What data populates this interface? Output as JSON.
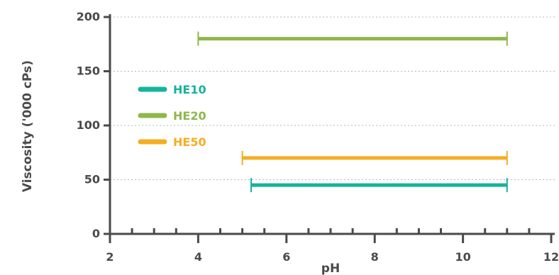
{
  "chart_data": {
    "type": "range",
    "xlabel": "pH",
    "ylabel": "Viscosity ('000 cPs)",
    "xlim": [
      2,
      12
    ],
    "ylim": [
      0,
      200
    ],
    "xticks": [
      "2",
      "4",
      "6",
      "8",
      "10",
      "12"
    ],
    "yticks": [
      "0",
      "50",
      "100",
      "150",
      "200"
    ],
    "grid": "horizontal-dotted",
    "legend_position": "left",
    "series": [
      {
        "name": "HE10",
        "color": "#17b29c",
        "ph_min": 5.2,
        "ph_max": 11,
        "viscosity": 45
      },
      {
        "name": "HE20",
        "color": "#8fb74c",
        "ph_min": 4.0,
        "ph_max": 11,
        "viscosity": 180
      },
      {
        "name": "HE50",
        "color": "#f5ae22",
        "ph_min": 5.0,
        "ph_max": 11,
        "viscosity": 70
      }
    ]
  }
}
